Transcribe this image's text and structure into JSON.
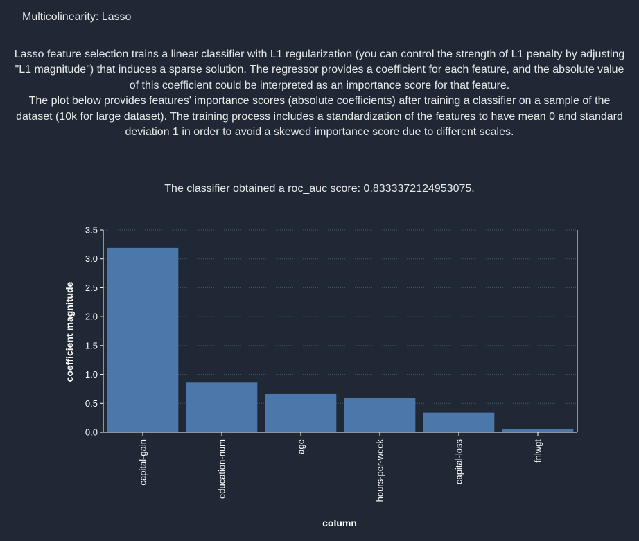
{
  "page": {
    "title": "Multicolinearity: Lasso",
    "description_1": "Lasso feature selection trains a linear classifier with L1 regularization (you can control the strength of L1 penalty by adjusting \"L1 magnitude\") that induces a sparse solution. The regressor provides a coefficient for each feature, and the absolute value of this coefficient could be interpreted as an importance score for that feature.",
    "description_2": "The plot below provides features' importance scores (absolute coefficients) after training a classifier on a sample of the dataset (10k for large dataset). The training process includes a standardization of the features to have mean 0 and standard deviation 1 in order to avoid a skewed importance score due to different scales.",
    "score_text": "The classifier obtained a roc_auc score: 0.8333372124953075."
  },
  "colors": {
    "background": "#1f2834",
    "bar": "#4b77aa",
    "axis": "#ffffff",
    "grid": "#4a5563"
  },
  "chart_data": {
    "type": "bar",
    "categories": [
      "capital-gain",
      "education-num",
      "age",
      "hours-per-week",
      "capital-loss",
      "fnlwgt"
    ],
    "values": [
      3.19,
      0.86,
      0.66,
      0.59,
      0.34,
      0.06
    ],
    "xlabel": "column",
    "ylabel": "coefficient magnitude",
    "ylim": [
      0,
      3.5
    ],
    "yticks": [
      "0.0",
      "0.5",
      "1.0",
      "1.5",
      "2.0",
      "2.5",
      "3.0",
      "3.5"
    ],
    "grid": true
  }
}
